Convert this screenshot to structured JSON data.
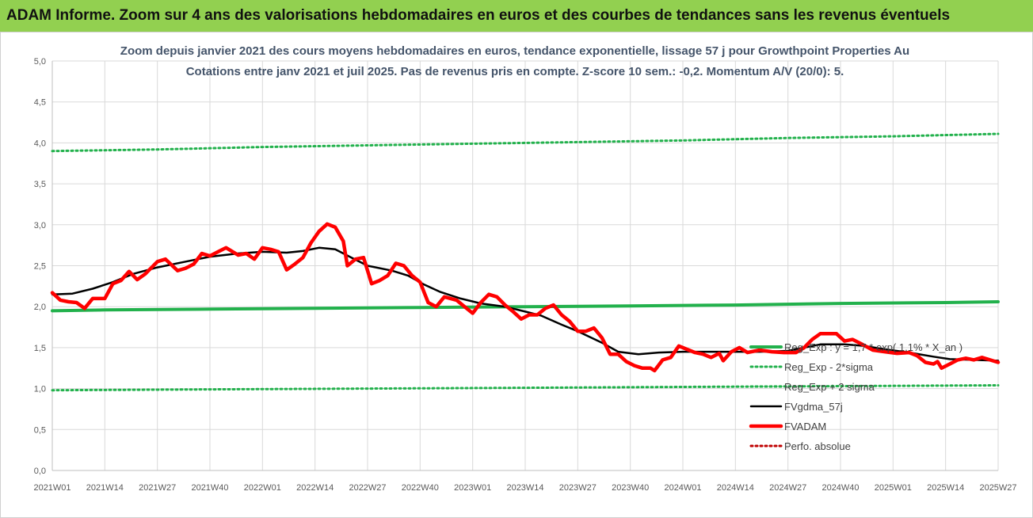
{
  "header": {
    "title": "ADAM Informe. Zoom sur 4 ans des valorisations hebdomadaires en euros et des courbes de tendances sans les revenus éventuels"
  },
  "colors": {
    "banner": "#92d050",
    "green": "#22b14c",
    "green_dotted": "#22b14c",
    "black": "#000000",
    "red": "#ff0000",
    "red_dotted": "#c00000",
    "grid": "#d9d9d9"
  },
  "chart_data": {
    "type": "line",
    "title": "Zoom depuis janvier 2021 des cours moyens hebdomadaires en euros, tendance exponentielle, lissage 57 j pour Growthpoint Properties Au",
    "subtitle": "Cotations entre janv 2021 et juil 2025. Pas de revenus pris en compte. Z-score 10 sem.: -0,2. Momentum A/V (20/0): 5.",
    "xlabel": "",
    "ylabel": "",
    "ylim": [
      0,
      5
    ],
    "yticks": [
      "0,0",
      "0,5",
      "1,0",
      "1,5",
      "2,0",
      "2,5",
      "3,0",
      "3,5",
      "4,0",
      "4,5",
      "5,0"
    ],
    "xlim": [
      0,
      234
    ],
    "xticks": [
      {
        "x": 0,
        "label": "2021W01"
      },
      {
        "x": 13,
        "label": "2021W14"
      },
      {
        "x": 26,
        "label": "2021W27"
      },
      {
        "x": 39,
        "label": "2021W40"
      },
      {
        "x": 52,
        "label": "2022W01"
      },
      {
        "x": 65,
        "label": "2022W14"
      },
      {
        "x": 78,
        "label": "2022W27"
      },
      {
        "x": 91,
        "label": "2022W40"
      },
      {
        "x": 104,
        "label": "2023W01"
      },
      {
        "x": 117,
        "label": "2023W14"
      },
      {
        "x": 130,
        "label": "2023W27"
      },
      {
        "x": 143,
        "label": "2023W40"
      },
      {
        "x": 156,
        "label": "2024W01"
      },
      {
        "x": 169,
        "label": "2024W14"
      },
      {
        "x": 182,
        "label": "2024W27"
      },
      {
        "x": 195,
        "label": "2024W40"
      },
      {
        "x": 208,
        "label": "2025W01"
      },
      {
        "x": 221,
        "label": "2025W14"
      },
      {
        "x": 234,
        "label": "2025W27"
      }
    ],
    "grid": true,
    "legend_position": "bottom-right",
    "series": [
      {
        "name": "Reg_Exp : y = 1,7 * exp( 1,1% *  X_an )",
        "style": "solid",
        "color": "#22b14c",
        "points": [
          [
            0,
            1.95
          ],
          [
            13,
            1.96
          ],
          [
            39,
            1.97
          ],
          [
            65,
            1.98
          ],
          [
            91,
            1.99
          ],
          [
            117,
            2.0
          ],
          [
            143,
            2.01
          ],
          [
            169,
            2.02
          ],
          [
            195,
            2.04
          ],
          [
            221,
            2.05
          ],
          [
            234,
            2.06
          ]
        ]
      },
      {
        "name": "Reg_Exp - 2*sigma",
        "style": "dotted",
        "color": "#22b14c",
        "points": [
          [
            0,
            0.98
          ],
          [
            39,
            0.99
          ],
          [
            78,
            1.0
          ],
          [
            117,
            1.01
          ],
          [
            156,
            1.02
          ],
          [
            195,
            1.03
          ],
          [
            234,
            1.04
          ]
        ]
      },
      {
        "name": "Reg_Exp + 2 sigma",
        "style": "dotted",
        "color": "#22b14c",
        "points": [
          [
            0,
            3.9
          ],
          [
            26,
            3.92
          ],
          [
            52,
            3.95
          ],
          [
            78,
            3.97
          ],
          [
            104,
            3.99
          ],
          [
            130,
            4.01
          ],
          [
            156,
            4.03
          ],
          [
            182,
            4.06
          ],
          [
            208,
            4.08
          ],
          [
            234,
            4.11
          ]
        ]
      },
      {
        "name": "FVgdma_57j",
        "style": "solid",
        "color": "#000000",
        "points": [
          [
            0,
            2.15
          ],
          [
            5,
            2.16
          ],
          [
            10,
            2.22
          ],
          [
            15,
            2.3
          ],
          [
            20,
            2.4
          ],
          [
            26,
            2.48
          ],
          [
            33,
            2.55
          ],
          [
            39,
            2.61
          ],
          [
            46,
            2.65
          ],
          [
            52,
            2.67
          ],
          [
            58,
            2.66
          ],
          [
            62,
            2.68
          ],
          [
            66,
            2.72
          ],
          [
            70,
            2.7
          ],
          [
            74,
            2.6
          ],
          [
            78,
            2.5
          ],
          [
            84,
            2.44
          ],
          [
            88,
            2.38
          ],
          [
            92,
            2.27
          ],
          [
            96,
            2.18
          ],
          [
            101,
            2.1
          ],
          [
            106,
            2.04
          ],
          [
            112,
            2.0
          ],
          [
            117,
            1.94
          ],
          [
            121,
            1.89
          ],
          [
            126,
            1.78
          ],
          [
            130,
            1.7
          ],
          [
            136,
            1.56
          ],
          [
            140,
            1.45
          ],
          [
            145,
            1.42
          ],
          [
            150,
            1.44
          ],
          [
            156,
            1.45
          ],
          [
            165,
            1.45
          ],
          [
            175,
            1.45
          ],
          [
            182,
            1.46
          ],
          [
            186,
            1.5
          ],
          [
            190,
            1.54
          ],
          [
            196,
            1.54
          ],
          [
            201,
            1.52
          ],
          [
            206,
            1.48
          ],
          [
            212,
            1.44
          ],
          [
            218,
            1.39
          ],
          [
            222,
            1.36
          ],
          [
            228,
            1.35
          ],
          [
            234,
            1.34
          ]
        ]
      },
      {
        "name": "FVADAM",
        "style": "solid",
        "color": "#ff0000",
        "points": [
          [
            0,
            2.17
          ],
          [
            2,
            2.08
          ],
          [
            4,
            2.06
          ],
          [
            6,
            2.05
          ],
          [
            8,
            1.98
          ],
          [
            10,
            2.1
          ],
          [
            13,
            2.1
          ],
          [
            15,
            2.28
          ],
          [
            17,
            2.32
          ],
          [
            19,
            2.43
          ],
          [
            21,
            2.33
          ],
          [
            23,
            2.4
          ],
          [
            26,
            2.55
          ],
          [
            28,
            2.58
          ],
          [
            31,
            2.44
          ],
          [
            33,
            2.47
          ],
          [
            35,
            2.52
          ],
          [
            37,
            2.65
          ],
          [
            39,
            2.62
          ],
          [
            41,
            2.67
          ],
          [
            43,
            2.72
          ],
          [
            46,
            2.63
          ],
          [
            48,
            2.65
          ],
          [
            50,
            2.58
          ],
          [
            52,
            2.72
          ],
          [
            54,
            2.7
          ],
          [
            56,
            2.67
          ],
          [
            58,
            2.45
          ],
          [
            60,
            2.52
          ],
          [
            62,
            2.6
          ],
          [
            64,
            2.78
          ],
          [
            66,
            2.92
          ],
          [
            68,
            3.01
          ],
          [
            70,
            2.97
          ],
          [
            72,
            2.8
          ],
          [
            73,
            2.5
          ],
          [
            75,
            2.58
          ],
          [
            77,
            2.6
          ],
          [
            79,
            2.28
          ],
          [
            81,
            2.32
          ],
          [
            83,
            2.38
          ],
          [
            85,
            2.53
          ],
          [
            87,
            2.5
          ],
          [
            89,
            2.38
          ],
          [
            91,
            2.3
          ],
          [
            93,
            2.05
          ],
          [
            95,
            2.0
          ],
          [
            97,
            2.12
          ],
          [
            100,
            2.08
          ],
          [
            102,
            2.0
          ],
          [
            104,
            1.92
          ],
          [
            106,
            2.05
          ],
          [
            108,
            2.15
          ],
          [
            110,
            2.12
          ],
          [
            112,
            2.02
          ],
          [
            114,
            1.94
          ],
          [
            116,
            1.85
          ],
          [
            118,
            1.9
          ],
          [
            120,
            1.9
          ],
          [
            122,
            1.98
          ],
          [
            124,
            2.02
          ],
          [
            126,
            1.9
          ],
          [
            128,
            1.82
          ],
          [
            130,
            1.7
          ],
          [
            132,
            1.7
          ],
          [
            134,
            1.74
          ],
          [
            136,
            1.62
          ],
          [
            138,
            1.42
          ],
          [
            140,
            1.42
          ],
          [
            142,
            1.33
          ],
          [
            144,
            1.28
          ],
          [
            146,
            1.25
          ],
          [
            148,
            1.25
          ],
          [
            149,
            1.22
          ],
          [
            151,
            1.35
          ],
          [
            153,
            1.38
          ],
          [
            155,
            1.52
          ],
          [
            157,
            1.48
          ],
          [
            159,
            1.44
          ],
          [
            161,
            1.42
          ],
          [
            163,
            1.38
          ],
          [
            165,
            1.43
          ],
          [
            166,
            1.34
          ],
          [
            168,
            1.45
          ],
          [
            170,
            1.5
          ],
          [
            172,
            1.44
          ],
          [
            175,
            1.47
          ],
          [
            178,
            1.45
          ],
          [
            181,
            1.44
          ],
          [
            184,
            1.44
          ],
          [
            186,
            1.5
          ],
          [
            188,
            1.6
          ],
          [
            190,
            1.67
          ],
          [
            192,
            1.67
          ],
          [
            194,
            1.67
          ],
          [
            196,
            1.58
          ],
          [
            198,
            1.6
          ],
          [
            200,
            1.55
          ],
          [
            203,
            1.47
          ],
          [
            206,
            1.45
          ],
          [
            209,
            1.43
          ],
          [
            212,
            1.44
          ],
          [
            214,
            1.4
          ],
          [
            216,
            1.32
          ],
          [
            218,
            1.3
          ],
          [
            219,
            1.33
          ],
          [
            220,
            1.25
          ],
          [
            222,
            1.3
          ],
          [
            224,
            1.35
          ],
          [
            226,
            1.37
          ],
          [
            228,
            1.35
          ],
          [
            230,
            1.38
          ],
          [
            232,
            1.35
          ],
          [
            234,
            1.32
          ]
        ]
      },
      {
        "name": "Perfo. absolue",
        "style": "dotted",
        "color": "#c00000",
        "points": []
      }
    ]
  }
}
